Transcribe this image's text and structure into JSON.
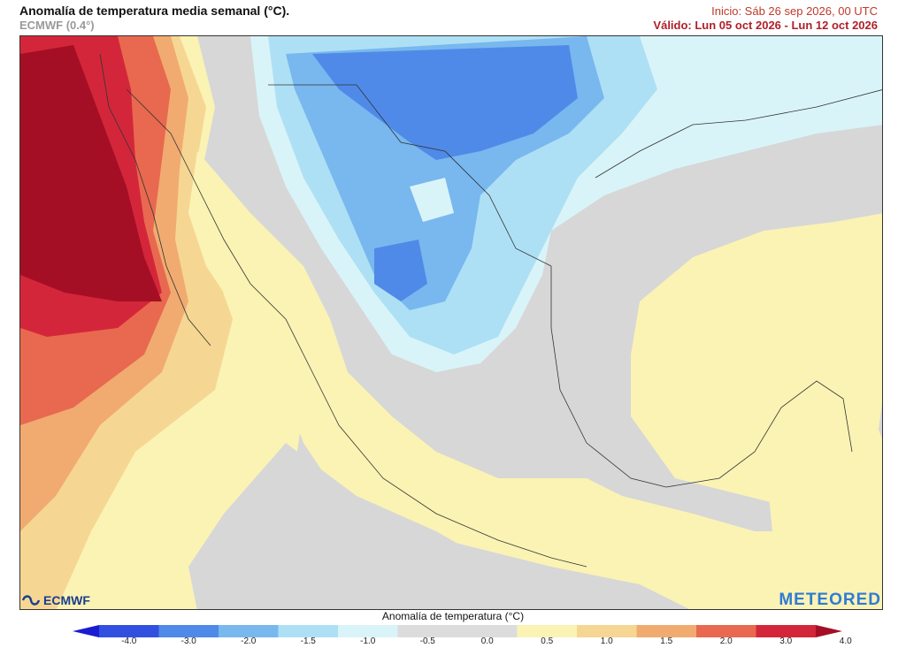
{
  "header": {
    "title": "Anomalía de temperatura media semanal (°C).",
    "model": "ECMWF (0.4°)",
    "init": "Inicio: Sáb 26 sep 2026, 00 UTC",
    "valid": "Válido: Lun 05 oct 2026 - Lun 12 oct 2026"
  },
  "logos": {
    "ecmwf": "ECMWF",
    "meteored": "METEORED"
  },
  "colorbar": {
    "title": "Anomalía de temperatura (°C)",
    "ticks": [
      "-4.0",
      "-3.0",
      "-2.0",
      "-1.5",
      "-1.0",
      "-0.5",
      "0.0",
      "0.5",
      "1.0",
      "1.5",
      "2.0",
      "3.0",
      "4.0"
    ],
    "colors": [
      "#1b1bd1",
      "#3150e0",
      "#4f8ae8",
      "#79b7ef",
      "#aee0f5",
      "#d9f4f8",
      "#dcdcdc",
      "#dcdcdc",
      "#fbf3b4",
      "#f5d793",
      "#f1ab70",
      "#e8694f",
      "#d4263a",
      "#a50f25"
    ]
  },
  "map": {
    "region": "México",
    "land_color": "#d9d9d9",
    "sea_color": "#d6d6d6",
    "warm_anomaly_color": "#c8102e",
    "cold_anomaly_color": "#2f7fe6"
  }
}
